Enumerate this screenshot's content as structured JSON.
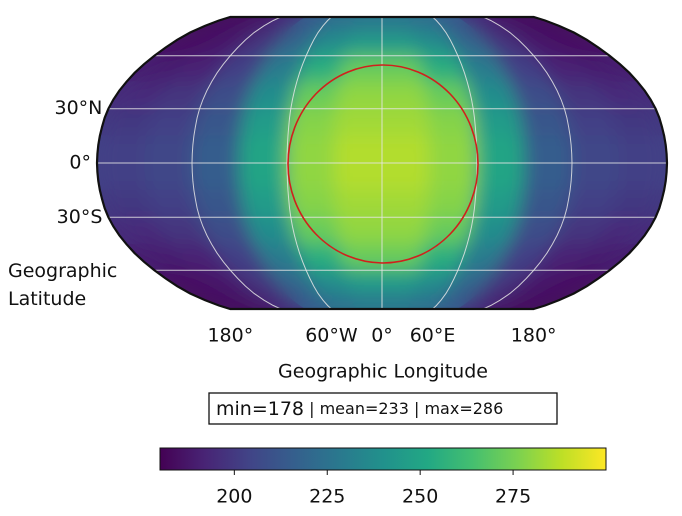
{
  "chart_data": {
    "type": "map",
    "projection": "robinson",
    "xlabel": "Geographic Longitude",
    "ylabel": "Geographic Latitude",
    "xticks": [
      {
        "value": -180,
        "label": "180°"
      },
      {
        "value": -60,
        "label": "60°W"
      },
      {
        "value": 0,
        "label": "0°"
      },
      {
        "value": 60,
        "label": "60°E"
      },
      {
        "value": 180,
        "label": "180°"
      }
    ],
    "yticks": [
      {
        "value": 30,
        "label": "30°N"
      },
      {
        "value": 0,
        "label": "0°"
      },
      {
        "value": -30,
        "label": "30°S"
      }
    ],
    "xgrid": [
      -120,
      -60,
      0,
      60,
      120
    ],
    "ygrid": [
      -60,
      -30,
      0,
      30,
      60
    ],
    "grid": {
      "lat_edges": [
        90,
        75,
        60,
        45,
        30,
        15,
        0,
        -15,
        -30,
        -45,
        -60,
        -75,
        -90
      ],
      "lon_edges": [
        -180,
        -150,
        -120,
        -90,
        -60,
        -30,
        0,
        30,
        60,
        90,
        120,
        150,
        180
      ],
      "values": [
        [
          184,
          186,
          195,
          215,
          225,
          228,
          228,
          225,
          215,
          195,
          186,
          184
        ],
        [
          185,
          188,
          198,
          220,
          238,
          245,
          245,
          238,
          220,
          198,
          188,
          185
        ],
        [
          190,
          192,
          203,
          230,
          255,
          272,
          272,
          255,
          230,
          203,
          192,
          190
        ],
        [
          195,
          198,
          208,
          238,
          272,
          280,
          280,
          272,
          238,
          208,
          198,
          195
        ],
        [
          200,
          203,
          212,
          245,
          278,
          283,
          283,
          278,
          245,
          212,
          203,
          200
        ],
        [
          203,
          205,
          215,
          250,
          280,
          286,
          286,
          280,
          250,
          215,
          205,
          203
        ],
        [
          203,
          205,
          215,
          250,
          280,
          286,
          286,
          280,
          250,
          215,
          205,
          203
        ],
        [
          200,
          203,
          212,
          245,
          278,
          283,
          283,
          278,
          245,
          212,
          203,
          200
        ],
        [
          195,
          198,
          208,
          238,
          272,
          280,
          280,
          272,
          238,
          208,
          198,
          195
        ],
        [
          190,
          192,
          203,
          230,
          255,
          272,
          272,
          255,
          230,
          203,
          192,
          190
        ],
        [
          185,
          188,
          198,
          220,
          238,
          245,
          245,
          238,
          220,
          198,
          188,
          185
        ],
        [
          184,
          186,
          195,
          215,
          225,
          228,
          228,
          225,
          215,
          195,
          186,
          184
        ]
      ]
    },
    "colormap": "viridis",
    "clim": [
      180,
      300
    ],
    "cticks": [
      200,
      225,
      250,
      275
    ],
    "stats": [
      "min=178",
      "mean=233",
      "max=286"
    ]
  }
}
